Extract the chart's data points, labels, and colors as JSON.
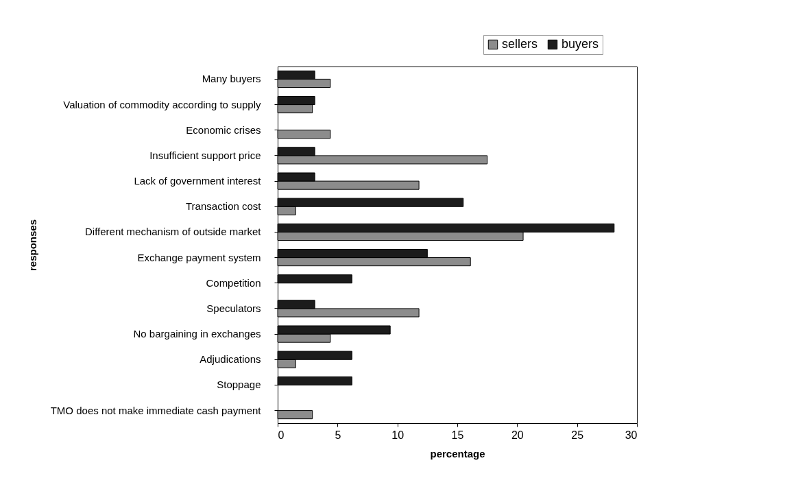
{
  "chart_data": {
    "type": "bar",
    "orientation": "horizontal",
    "xlabel": "percentage",
    "ylabel": "responses",
    "categories": [
      "Many buyers",
      "Valuation of commodity according to supply",
      "Economic crises",
      "Insufficient support price",
      "Lack of government interest",
      "Transaction cost",
      "Different mechanism of outside market",
      "Exchange payment system",
      "Competition",
      "Speculators",
      "No bargaining in exchanges",
      "Adjudications",
      "Stoppage",
      "TMO does not make immediate cash payment"
    ],
    "series": [
      {
        "name": "sellers",
        "color": "#8c8c8c",
        "values": [
          4.4,
          2.9,
          4.4,
          17.5,
          11.8,
          1.5,
          20.5,
          16.1,
          null,
          11.8,
          4.4,
          1.5,
          null,
          2.9
        ]
      },
      {
        "name": "buyers",
        "color": "#1c1c1c",
        "values": [
          3.1,
          3.1,
          null,
          3.1,
          3.1,
          15.5,
          28.1,
          12.5,
          6.2,
          3.1,
          9.4,
          6.2,
          6.2,
          null
        ]
      }
    ],
    "xlim": [
      0,
      30
    ],
    "xticks": [
      0,
      5,
      10,
      15,
      20,
      25,
      30
    ],
    "legend": "top right",
    "grid": false
  }
}
